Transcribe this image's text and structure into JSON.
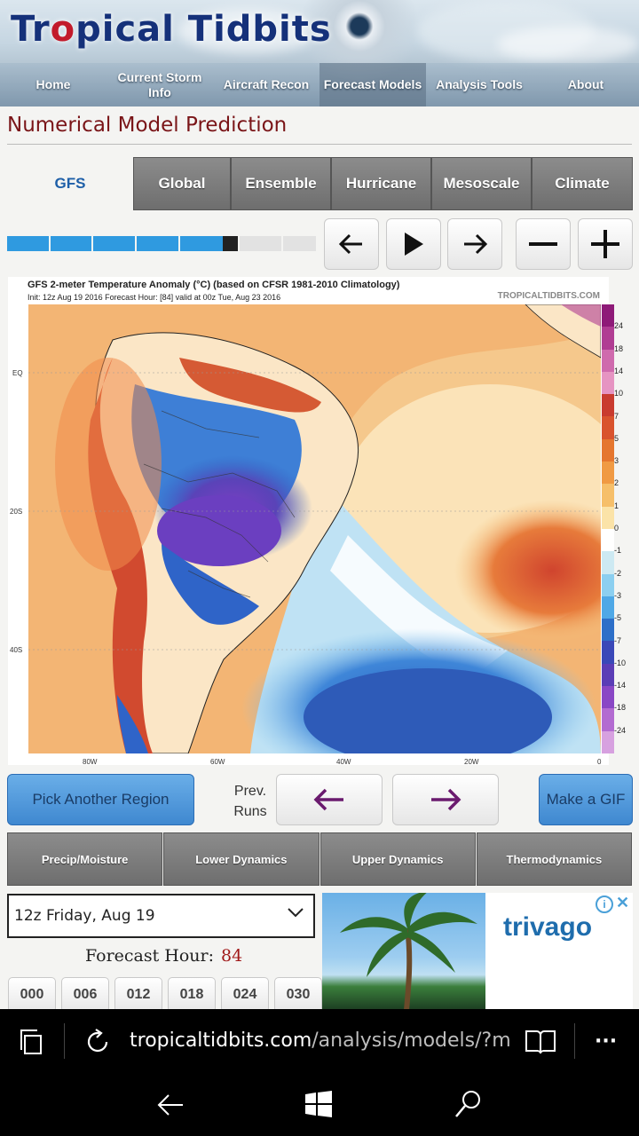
{
  "header": {
    "logo_pre": "Tr",
    "logo_o": "o",
    "logo_post": "pical Tidbits",
    "nav": [
      {
        "label": "Home",
        "active": false
      },
      {
        "label": "Current Storm Info",
        "active": false
      },
      {
        "label": "Aircraft Recon",
        "active": false
      },
      {
        "label": "Forecast Models",
        "active": true
      },
      {
        "label": "Analysis Tools",
        "active": false
      },
      {
        "label": "About",
        "active": false
      }
    ]
  },
  "page_title": "Numerical Model Prediction",
  "model_tabs": [
    {
      "label": "GFS",
      "active": true
    },
    {
      "label": "Global",
      "active": false
    },
    {
      "label": "Ensemble",
      "active": false
    },
    {
      "label": "Hurricane",
      "active": false
    },
    {
      "label": "Mesoscale",
      "active": false
    },
    {
      "label": "Climate",
      "active": false
    }
  ],
  "progress": {
    "segments_total": 8,
    "segments_loaded": 5,
    "current_segment": 6
  },
  "controls": [
    "arrow-left-icon",
    "play-icon",
    "arrow-right-icon",
    "minus-icon",
    "plus-icon"
  ],
  "map": {
    "title": "GFS 2-meter Temperature Anomaly (°C) (based on CFSR 1981-2010 Climatology)",
    "subtitle": "Init: 12z Aug 19 2016   Forecast Hour: [84]   valid at 00z Tue, Aug 23 2016",
    "brand": "TROPICALTIDBITS.COM",
    "lat_labels": [
      "EQ",
      "20S",
      "40S"
    ],
    "lon_labels": [
      "80W",
      "60W",
      "40W",
      "20W",
      "0"
    ],
    "colorbar_labels": [
      "24",
      "18",
      "14",
      "10",
      "7",
      "5",
      "3",
      "2",
      "1",
      "0",
      "-1",
      "-2",
      "-3",
      "-5",
      "-7",
      "-10",
      "-14",
      "-18",
      "-24"
    ],
    "colorbar_colors": [
      "#8e1a78",
      "#b03d93",
      "#cf6aad",
      "#e694c2",
      "#c93b2f",
      "#d9532e",
      "#e5762f",
      "#f09a44",
      "#f6bf6a",
      "#fbe3a8",
      "#ffffff",
      "#cde9f2",
      "#8ccff0",
      "#4fa8e6",
      "#2d6fc8",
      "#3a48b8",
      "#5b3db6",
      "#8a47c5",
      "#b36bd1",
      "#d7a1e0"
    ]
  },
  "actions": {
    "pick_region": "Pick Another Region",
    "prev_runs": "Prev. Runs",
    "make_gif": "Make a GIF"
  },
  "categories": [
    "Precip/Moisture",
    "Lower Dynamics",
    "Upper Dynamics",
    "Thermodynamics"
  ],
  "run_select": {
    "value": "12z Friday, Aug 19"
  },
  "forecast_hour": {
    "label": "Forecast Hour:",
    "value": "84"
  },
  "hour_buttons": [
    "000",
    "006",
    "012",
    "018",
    "024",
    "030"
  ],
  "ad": {
    "brand": "trivago",
    "info": "i"
  },
  "browser": {
    "url_host": "tropicaltidbits.com",
    "url_path": "/analysis/models/?mode"
  }
}
